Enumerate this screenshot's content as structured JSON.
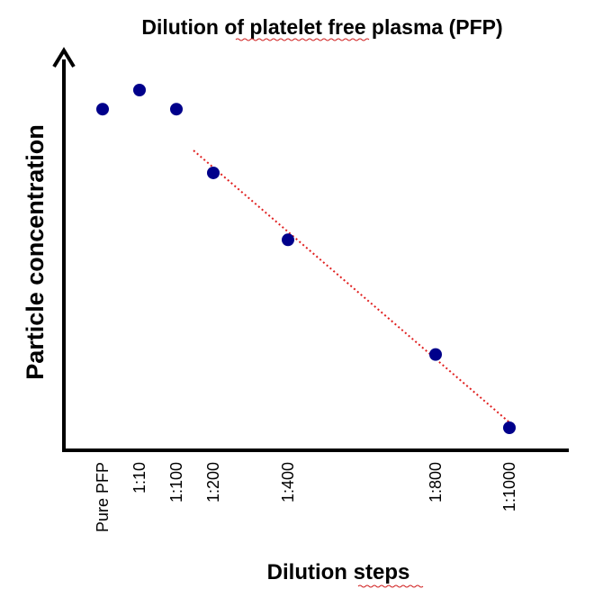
{
  "chart_data": {
    "type": "scatter",
    "title": "Dilution of platelet free plasma (PFP)",
    "xlabel": "Dilution steps",
    "ylabel": "Particle concentration",
    "categories": [
      "Pure PFP",
      "1:10",
      "1:100",
      "1:200",
      "1:400",
      "1:800",
      "1:1000"
    ],
    "x_axis_note": "category positions follow dilution spacing",
    "points": [
      {
        "x": "Pure PFP",
        "y": 0.92
      },
      {
        "x": "1:10",
        "y": 0.98
      },
      {
        "x": "1:100",
        "y": 0.92
      },
      {
        "x": "1:200",
        "y": 0.72
      },
      {
        "x": "1:400",
        "y": 0.51
      },
      {
        "x": "1:800",
        "y": 0.15
      },
      {
        "x": "1:1000",
        "y": -0.08
      }
    ],
    "trendline": {
      "style": "dotted",
      "from_x": "1:200",
      "to_x": "1:1000"
    },
    "y_ticks_shown": false,
    "grid": false,
    "legend": "none",
    "colors": {
      "points": "#00008b",
      "trendline": "#e02020",
      "axes": "#000000"
    }
  }
}
